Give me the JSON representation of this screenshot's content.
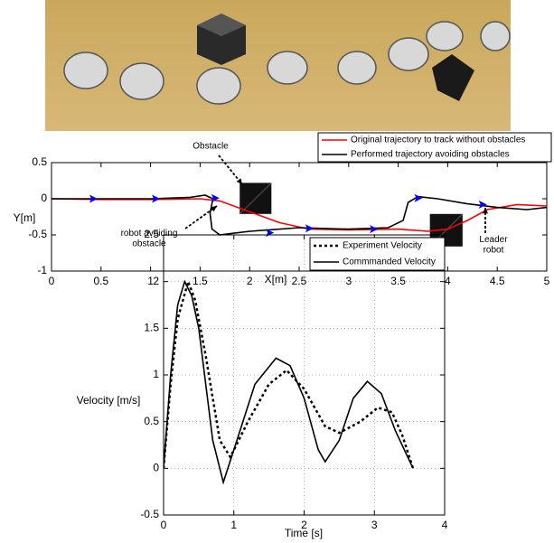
{
  "chart_data": [
    {
      "type": "line",
      "xlabel": "X[m]",
      "ylabel": "Y[m]",
      "xlim": [
        0,
        5
      ],
      "ylim": [
        -1,
        0.5
      ],
      "xticks": [
        0,
        0.5,
        1,
        1.5,
        2,
        2.5,
        3,
        3.5,
        4,
        4.5,
        5
      ],
      "yticks": [
        -1,
        -0.5,
        0,
        0.5
      ],
      "grid": false,
      "legend": "upper right",
      "series": [
        {
          "name": "Original trajectory to track without obstacles",
          "color": "#ff0000",
          "linestyle": "solid",
          "x": [
            0,
            0.5,
            1,
            1.5,
            1.7,
            2.0,
            2.3,
            2.6,
            3.0,
            3.5,
            3.8,
            4.0,
            4.2,
            4.4,
            4.7,
            5
          ],
          "values": [
            0,
            -0.01,
            -0.01,
            0,
            -0.03,
            -0.18,
            -0.33,
            -0.42,
            -0.43,
            -0.42,
            -0.45,
            -0.42,
            -0.3,
            -0.15,
            -0.08,
            -0.1
          ]
        },
        {
          "name": "Performed trajectory avoiding obstacles",
          "color": "#000000",
          "linestyle": "solid",
          "x": [
            0,
            0.5,
            1,
            1.4,
            1.55,
            1.63,
            1.6,
            1.62,
            1.7,
            2.0,
            2.5,
            3.0,
            3.4,
            3.55,
            3.6,
            3.7,
            3.9,
            4.2,
            4.5,
            4.8,
            5
          ],
          "values": [
            0,
            0,
            0,
            0.02,
            0.05,
            0,
            -0.2,
            -0.42,
            -0.5,
            -0.45,
            -0.4,
            -0.42,
            -0.4,
            -0.3,
            -0.05,
            0.03,
            0,
            -0.07,
            -0.12,
            -0.15,
            -0.12
          ]
        }
      ],
      "markers": {
        "color": "#0000ff",
        "x": [
          0.42,
          1.05,
          1.65,
          2.2,
          2.6,
          3.25,
          3.7,
          4.35
        ],
        "y": [
          0,
          0,
          0.01,
          -0.47,
          -0.41,
          -0.42,
          0.01,
          -0.08
        ]
      },
      "obstacles": [
        {
          "x": [
            1.9,
            2.22
          ],
          "y": [
            -0.21,
            0.22
          ]
        },
        {
          "x": [
            3.82,
            4.15
          ],
          "y": [
            -0.66,
            -0.21
          ]
        }
      ],
      "annotations": [
        "Obstacle",
        "robot avoiding\nobstacle",
        "Leader\nrobot"
      ]
    },
    {
      "type": "line",
      "xlabel": "Time [s]",
      "ylabel": "Velocity [m/s]",
      "xlim": [
        0,
        4
      ],
      "ylim": [
        -0.5,
        2.5
      ],
      "xticks": [
        0,
        1,
        2,
        3,
        4
      ],
      "yticks": [
        -0.5,
        0,
        0.5,
        1,
        1.5,
        2,
        2.5
      ],
      "grid": true,
      "legend": "upper right",
      "series": [
        {
          "name": "Experiment Velocity",
          "color": "#000000",
          "linestyle": "dotted",
          "x": [
            0,
            0.1,
            0.2,
            0.35,
            0.45,
            0.6,
            0.8,
            0.95,
            1.2,
            1.5,
            1.75,
            2.0,
            2.3,
            2.5,
            2.8,
            3.05,
            3.25,
            3.4,
            3.55
          ],
          "values": [
            0,
            0.9,
            1.6,
            2.0,
            1.8,
            1.2,
            0.3,
            0.12,
            0.5,
            0.9,
            1.05,
            0.85,
            0.45,
            0.38,
            0.5,
            0.65,
            0.6,
            0.35,
            0
          ]
        },
        {
          "name": "Commmanded Velocity",
          "color": "#000000",
          "linestyle": "solid",
          "x": [
            0,
            0.1,
            0.2,
            0.3,
            0.4,
            0.5,
            0.7,
            0.85,
            1.0,
            1.3,
            1.6,
            1.8,
            2.0,
            2.2,
            2.3,
            2.5,
            2.7,
            2.9,
            3.1,
            3.3,
            3.55
          ],
          "values": [
            0,
            1.0,
            1.75,
            2.0,
            1.85,
            1.5,
            0.3,
            -0.15,
            0.2,
            0.9,
            1.18,
            1.1,
            0.75,
            0.2,
            0.07,
            0.3,
            0.75,
            0.93,
            0.8,
            0.4,
            0
          ]
        }
      ]
    }
  ]
}
